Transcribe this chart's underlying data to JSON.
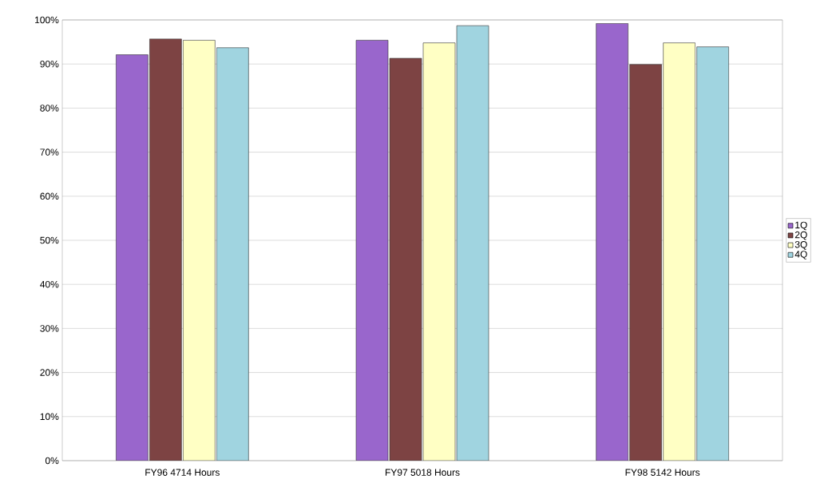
{
  "chart_data": {
    "type": "bar",
    "categories": [
      "FY96  4714 Hours",
      "FY97  5018 Hours",
      "FY98  5142 Hours"
    ],
    "series": [
      {
        "name": "1Q",
        "color": "#9966cc",
        "values": [
          92.1,
          95.4,
          99.2
        ]
      },
      {
        "name": "2Q",
        "color": "#7d4343",
        "values": [
          95.7,
          91.3,
          89.9
        ]
      },
      {
        "name": "3Q",
        "color": "#ffffc4",
        "values": [
          95.4,
          94.8,
          94.8
        ]
      },
      {
        "name": "4Q",
        "color": "#a0d4e0",
        "values": [
          93.7,
          98.7,
          93.9
        ]
      }
    ],
    "ylim": [
      0,
      100
    ],
    "yticks": [
      {
        "value": 0,
        "label": "0%"
      },
      {
        "value": 10,
        "label": "10%"
      },
      {
        "value": 20,
        "label": "20%"
      },
      {
        "value": 30,
        "label": "30%"
      },
      {
        "value": 40,
        "label": "40%"
      },
      {
        "value": 50,
        "label": "50%"
      },
      {
        "value": 60,
        "label": "60%"
      },
      {
        "value": 70,
        "label": "70%"
      },
      {
        "value": 80,
        "label": "80%"
      },
      {
        "value": 90,
        "label": "90%"
      },
      {
        "value": 100,
        "label": "100%"
      }
    ],
    "grid": "y",
    "legend": "right"
  }
}
